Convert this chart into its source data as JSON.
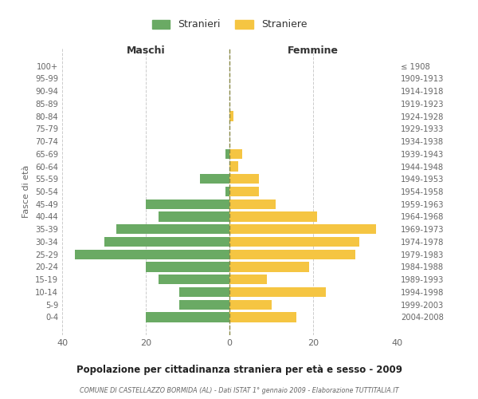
{
  "age_groups": [
    "100+",
    "95-99",
    "90-94",
    "85-89",
    "80-84",
    "75-79",
    "70-74",
    "65-69",
    "60-64",
    "55-59",
    "50-54",
    "45-49",
    "40-44",
    "35-39",
    "30-34",
    "25-29",
    "20-24",
    "15-19",
    "10-14",
    "5-9",
    "0-4"
  ],
  "birth_years": [
    "≤ 1908",
    "1909-1913",
    "1914-1918",
    "1919-1923",
    "1924-1928",
    "1929-1933",
    "1934-1938",
    "1939-1943",
    "1944-1948",
    "1949-1953",
    "1954-1958",
    "1959-1963",
    "1964-1968",
    "1969-1973",
    "1974-1978",
    "1979-1983",
    "1984-1988",
    "1989-1993",
    "1994-1998",
    "1999-2003",
    "2004-2008"
  ],
  "maschi": [
    0,
    0,
    0,
    0,
    0,
    0,
    0,
    1,
    0,
    7,
    1,
    20,
    17,
    27,
    30,
    37,
    20,
    17,
    12,
    12,
    20
  ],
  "femmine": [
    0,
    0,
    0,
    0,
    1,
    0,
    0,
    3,
    2,
    7,
    7,
    11,
    21,
    35,
    31,
    30,
    19,
    9,
    23,
    10,
    16
  ],
  "maschi_color": "#6aaa64",
  "femmine_color": "#f5c542",
  "bg_color": "#ffffff",
  "grid_color": "#cccccc",
  "title": "Popolazione per cittadinanza straniera per età e sesso - 2009",
  "subtitle": "COMUNE DI CASTELLAZZO BORMIDA (AL) - Dati ISTAT 1° gennaio 2009 - Elaborazione TUTTITALIA.IT",
  "xlabel_left": "Maschi",
  "xlabel_right": "Femmine",
  "ylabel_left": "Fasce di età",
  "legend_maschi": "Stranieri",
  "legend_femmine": "Straniere",
  "xlim": 40
}
